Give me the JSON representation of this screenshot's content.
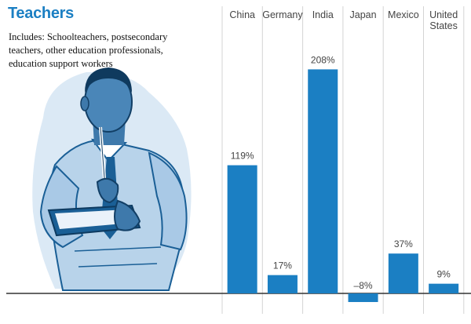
{
  "header": {
    "title": "Teachers",
    "description_lines": [
      "Includes: Schoolteachers, postsecondary",
      "teachers, other education professionals,",
      "education support workers"
    ]
  },
  "colors": {
    "title": "#1b7fc3",
    "bar": "#1b7fc3",
    "gridline": "#d4d4d4",
    "baseline": "#333333",
    "label": "#444444"
  },
  "illustration": {
    "icon": "teacher-with-clipboard-icon"
  },
  "chart_data": {
    "type": "bar",
    "categories": [
      [
        "China"
      ],
      [
        "Germany"
      ],
      [
        "India"
      ],
      [
        "Japan"
      ],
      [
        "Mexico"
      ],
      [
        "United",
        "States"
      ]
    ],
    "values": [
      119,
      17,
      208,
      -8,
      37,
      9
    ],
    "value_labels": [
      "119%",
      "17%",
      "208%",
      "–8%",
      "37%",
      "9%"
    ],
    "ylim": [
      -12,
      225
    ],
    "grid": "vertical separators only",
    "legend": "none"
  }
}
